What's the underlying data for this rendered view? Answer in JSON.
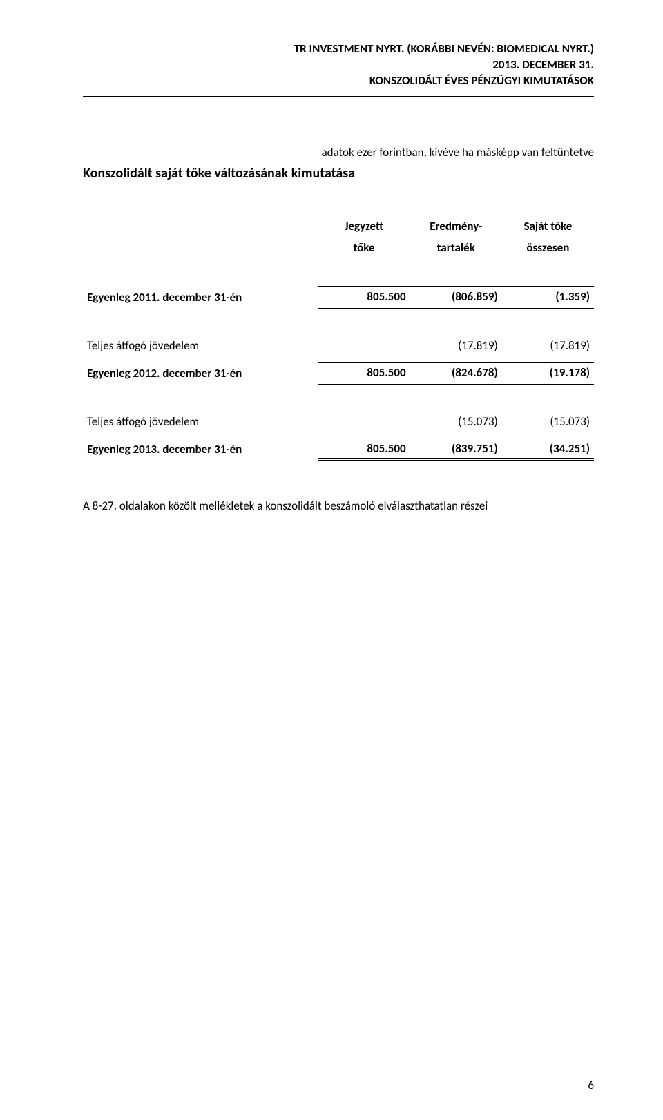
{
  "header": {
    "line1": "TR INVESTMENT NYRT. (KORÁBBI NEVÉN: BIOMEDICAL NYRT.)",
    "line2": "2013. DECEMBER 31.",
    "line3": "KONSZOLIDÁLT ÉVES PÉNZÜGYI KIMUTATÁSOK"
  },
  "unit_note": "adatok ezer forintban, kivéve ha másképp van feltüntetve",
  "section_title": "Konszolidált saját tőke változásának kimutatása",
  "columns": {
    "c1a": "Jegyzett",
    "c1b": "tőke",
    "c2a": "Eredmény-",
    "c2b": "tartalék",
    "c3a": "Saját tőke",
    "c3b": "összesen"
  },
  "rows": {
    "bal2011": {
      "label": "Egyenleg 2011. december 31-én",
      "v1": "805.500",
      "v2": "(806.859)",
      "v3": "(1.359)"
    },
    "inc1": {
      "label": "Teljes átfogó jövedelem",
      "v1": "",
      "v2": "(17.819)",
      "v3": "(17.819)"
    },
    "bal2012": {
      "label": "Egyenleg 2012. december 31-én",
      "v1": "805.500",
      "v2": "(824.678)",
      "v3": "(19.178)"
    },
    "inc2": {
      "label": "Teljes átfogó jövedelem",
      "v1": "",
      "v2": "(15.073)",
      "v3": "(15.073)"
    },
    "bal2013": {
      "label": "Egyenleg 2013. december 31-én",
      "v1": "805.500",
      "v2": "(839.751)",
      "v3": "(34.251)"
    }
  },
  "footnote": "A 8-27. oldalakon közölt mellékletek a konszolidált beszámoló elválaszthatatlan részei",
  "page_number": "6",
  "style": {
    "font_family": "Calibri",
    "body_font_size_pt": 17,
    "title_font_size_pt": 20,
    "text_color": "#000000",
    "background_color": "#ffffff",
    "rule_color": "#000000"
  }
}
